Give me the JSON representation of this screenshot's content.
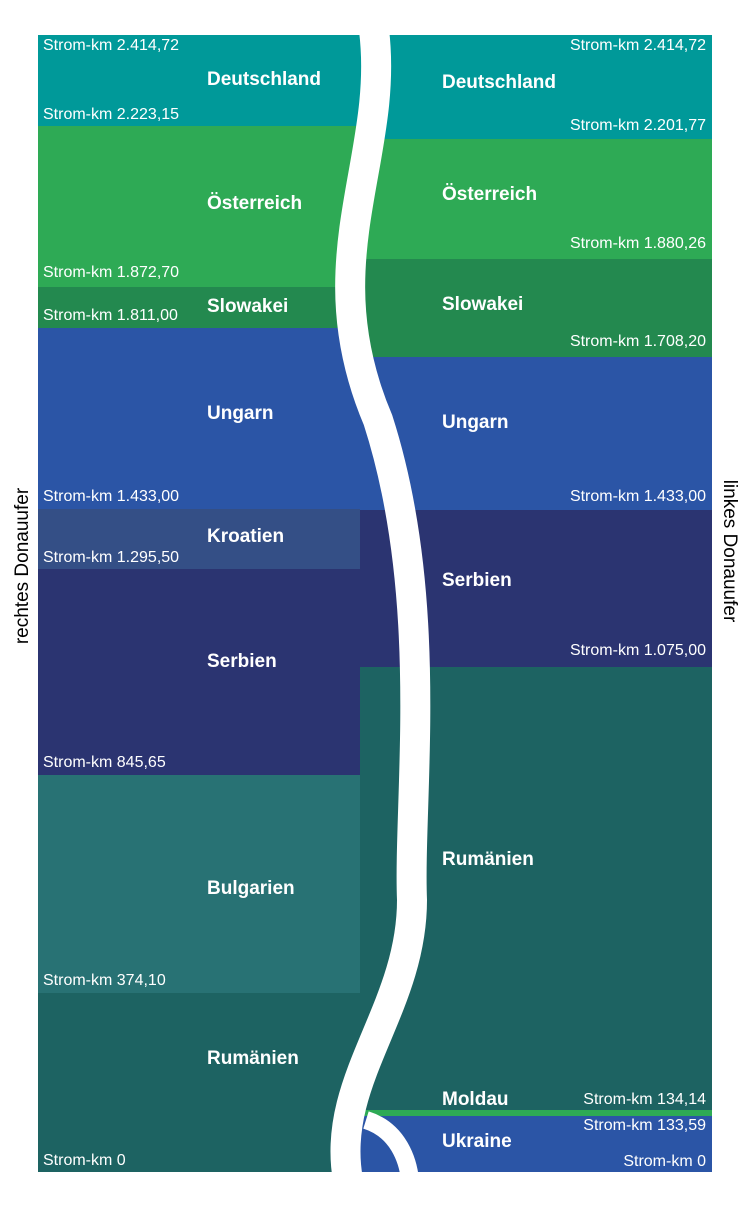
{
  "banks": {
    "left_label": "rechtes Donauufer",
    "right_label": "linkes Donauufer"
  },
  "left_segments": [
    {
      "country": "Deutschland",
      "color": "#009999"
    },
    {
      "country": "Österreich",
      "color": "#2eaa55"
    },
    {
      "country": "Slowakei",
      "color": "#23894f"
    },
    {
      "country": "Ungarn",
      "color": "#2b55a6"
    },
    {
      "country": "Kroatien",
      "color": "#344f86"
    },
    {
      "country": "Serbien",
      "color": "#2b3471"
    },
    {
      "country": "Bulgarien",
      "color": "#287274"
    },
    {
      "country": "Rumänien",
      "color": "#1d6362"
    }
  ],
  "right_segments": [
    {
      "country": "Deutschland",
      "color": "#009999"
    },
    {
      "country": "Österreich",
      "color": "#2eaa55"
    },
    {
      "country": "Slowakei",
      "color": "#23894f"
    },
    {
      "country": "Ungarn",
      "color": "#2b55a6"
    },
    {
      "country": "Serbien",
      "color": "#2b3471"
    },
    {
      "country": "Rumänien",
      "color": "#1d6362"
    },
    {
      "country": "Moldau",
      "color": "#2eaa55"
    },
    {
      "country": "Ukraine",
      "color": "#2b55a6"
    }
  ],
  "left_km": [
    "Strom-km 2.414,72",
    "Strom-km 2.223,15",
    "Strom-km 1.872,70",
    "Strom-km 1.811,00",
    "Strom-km 1.433,00",
    "Strom-km 1.295,50",
    "Strom-km 845,65",
    "Strom-km 374,10",
    "Strom-km 0"
  ],
  "right_km": [
    "Strom-km 2.414,72",
    "Strom-km 2.201,77",
    "Strom-km 1.880,26",
    "Strom-km 1.708,20",
    "Strom-km 1.433,00",
    "Strom-km 1.075,00",
    "Strom-km 134,14",
    "Strom-km 133,59",
    "Strom-km 0"
  ]
}
